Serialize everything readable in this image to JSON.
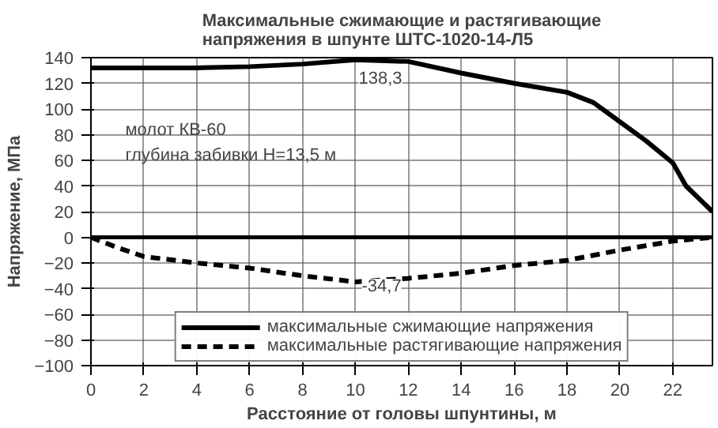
{
  "chart_data": {
    "type": "line",
    "title": "Максимальные сжимающие и растягивающие\nнапряжения в шпунте ШТС-1020-14-Л5",
    "xlabel": "Расстояние от головы шпунтины, м",
    "ylabel": "Напряжение, МПа",
    "xlim": [
      0,
      23.5
    ],
    "ylim": [
      -100,
      140
    ],
    "xticks": [
      0,
      2,
      4,
      6,
      8,
      10,
      12,
      14,
      16,
      18,
      20,
      22
    ],
    "yticks": [
      -100,
      -80,
      -60,
      -40,
      -20,
      0,
      20,
      40,
      60,
      80,
      100,
      120,
      140
    ],
    "grid": true,
    "legend": "bottom",
    "marker": "none",
    "series": [
      {
        "name": "максимальные сжимающие напряжения",
        "color": "#000000",
        "line_style": "solid",
        "x": [
          0,
          2,
          4,
          6,
          8,
          10,
          12,
          14,
          16,
          18,
          19,
          20,
          21,
          22,
          22.5,
          23.5
        ],
        "values": [
          132,
          132,
          132,
          133,
          135,
          138.3,
          137,
          128,
          120,
          113,
          105,
          90,
          75,
          58,
          40,
          20
        ]
      },
      {
        "name": "максимальные растягивающие напряжения",
        "color": "#000000",
        "line_style": "dashed",
        "x": [
          0,
          1,
          2,
          4,
          6,
          8,
          10,
          12,
          14,
          16,
          18,
          20,
          22,
          23.5
        ],
        "values": [
          0,
          -8,
          -15,
          -20,
          -24,
          -30,
          -34.7,
          -32,
          -28,
          -22,
          -18,
          -10,
          -3,
          0
        ]
      }
    ],
    "ref_lines": [
      {
        "axis": "y",
        "value": 0,
        "color": "#000000",
        "line_style": "solid"
      }
    ],
    "annotations": [
      {
        "text": "138,3",
        "x": 10,
        "y": 138.3
      },
      {
        "text": "-34,7",
        "x": 10,
        "y": -34.7
      },
      "молот КВ-60",
      "глубина забивки Н=13,5 м"
    ]
  }
}
